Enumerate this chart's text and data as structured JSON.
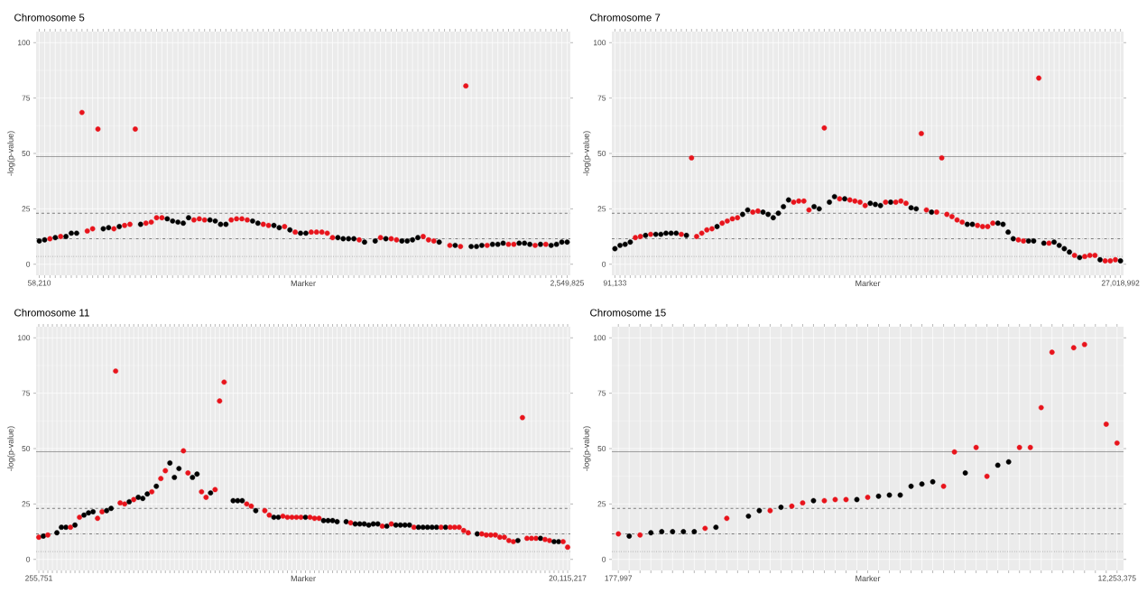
{
  "chart_data": [
    {
      "type": "scatter",
      "title": "Chromosome 5",
      "xlabel": "Marker",
      "ylabel": "-log(p-value)",
      "grid": true,
      "ylim": [
        -5,
        105
      ],
      "yticks": [
        0,
        25,
        50,
        75,
        100
      ],
      "ref_lines": [
        {
          "axis": "y",
          "value": 48.5,
          "line_style": "solid",
          "color": "#4d4d4d"
        },
        {
          "axis": "y",
          "value": 23,
          "line_style": "dashed",
          "color": "#333333"
        },
        {
          "axis": "y",
          "value": 11.5,
          "line_style": "dashdot",
          "color": "#333333"
        },
        {
          "axis": "y",
          "value": 3.5,
          "line_style": "dotted",
          "color": "#555555"
        }
      ],
      "categories": [
        "58,210",
        null,
        null,
        null,
        null,
        null,
        null,
        null,
        null,
        null,
        null,
        null,
        null,
        null,
        null,
        null,
        null,
        null,
        null,
        null,
        null,
        null,
        null,
        null,
        null,
        null,
        null,
        null,
        null,
        null,
        null,
        null,
        null,
        null,
        null,
        null,
        null,
        null,
        null,
        null,
        null,
        null,
        null,
        null,
        null,
        null,
        null,
        null,
        null,
        null,
        null,
        null,
        null,
        null,
        null,
        null,
        null,
        null,
        null,
        null,
        null,
        null,
        null,
        null,
        null,
        null,
        null,
        null,
        null,
        null,
        null,
        null,
        null,
        null,
        null,
        null,
        null,
        null,
        null,
        null,
        null,
        null,
        null,
        null,
        null,
        null,
        null,
        null,
        null,
        null,
        null,
        null,
        null,
        null,
        null,
        null,
        null,
        null,
        null,
        "2,549,825"
      ],
      "values": [
        10.5,
        11,
        11.5,
        12,
        12.5,
        12.5,
        14,
        14,
        68.5,
        15,
        16,
        61,
        16,
        16.5,
        16,
        17,
        17.5,
        18,
        61,
        18,
        18.5,
        19,
        21,
        21,
        20.5,
        19.5,
        19,
        18.5,
        21,
        20,
        20.5,
        20,
        20,
        19.5,
        18,
        18,
        20,
        20.5,
        20.5,
        20,
        19.5,
        18.5,
        18,
        17.5,
        17.5,
        16.5,
        17,
        15.5,
        14.5,
        14,
        14,
        14.5,
        14.5,
        14.5,
        14,
        12,
        12,
        11.5,
        11.5,
        11.5,
        11,
        10,
        null,
        10.5,
        12,
        11.5,
        11.5,
        11,
        10.5,
        10.5,
        11,
        12,
        12.5,
        11,
        10.5,
        10,
        null,
        8.5,
        8.5,
        8,
        80.5,
        8,
        8,
        8.5,
        8.5,
        9,
        9,
        9.5,
        9,
        9,
        9.5,
        9.5,
        9,
        8.5,
        9,
        9,
        8.5,
        9,
        10,
        10
      ],
      "colors": [
        "#000000",
        "#000000",
        "#e8141c",
        "#000000",
        "#e8141c",
        "#000000",
        "#000000",
        "#000000",
        "#e8141c",
        "#e8141c",
        "#e8141c",
        "#e8141c",
        "#000000",
        "#000000",
        "#e8141c",
        "#000000",
        "#e8141c",
        "#e8141c",
        "#e8141c",
        "#000000",
        "#e8141c",
        "#e8141c",
        "#e8141c",
        "#e8141c",
        "#000000",
        "#000000",
        "#000000",
        "#000000",
        "#000000",
        "#e8141c",
        "#e8141c",
        "#e8141c",
        "#000000",
        "#000000",
        "#000000",
        "#000000",
        "#e8141c",
        "#e8141c",
        "#e8141c",
        "#e8141c",
        "#000000",
        "#000000",
        "#e8141c",
        "#e8141c",
        "#000000",
        "#000000",
        "#e8141c",
        "#000000",
        "#e8141c",
        "#000000",
        "#000000",
        "#e8141c",
        "#e8141c",
        "#e8141c",
        "#e8141c",
        "#e8141c",
        "#000000",
        "#000000",
        "#000000",
        "#000000",
        "#e8141c",
        "#000000",
        null,
        "#000000",
        "#e8141c",
        "#000000",
        "#e8141c",
        "#e8141c",
        "#000000",
        "#000000",
        "#000000",
        "#000000",
        "#e8141c",
        "#e8141c",
        "#e8141c",
        "#000000",
        null,
        "#e8141c",
        "#000000",
        "#e8141c",
        "#e8141c",
        "#000000",
        "#000000",
        "#000000",
        "#e8141c",
        "#000000",
        "#000000",
        "#000000",
        "#e8141c",
        "#e8141c",
        "#000000",
        "#000000",
        "#000000",
        "#e8141c",
        "#000000",
        "#e8141c",
        "#000000",
        "#000000",
        "#000000",
        "#000000"
      ]
    },
    {
      "type": "scatter",
      "title": "Chromosome 7",
      "xlabel": "Marker",
      "ylabel": "-log(p-value)",
      "grid": true,
      "ylim": [
        -5,
        105
      ],
      "yticks": [
        0,
        25,
        50,
        75,
        100
      ],
      "ref_lines": [
        {
          "axis": "y",
          "value": 48.5,
          "line_style": "solid",
          "color": "#4d4d4d"
        },
        {
          "axis": "y",
          "value": 23,
          "line_style": "dashed",
          "color": "#333333"
        },
        {
          "axis": "y",
          "value": 11.5,
          "line_style": "dashdot",
          "color": "#333333"
        },
        {
          "axis": "y",
          "value": 3.5,
          "line_style": "dotted",
          "color": "#555555"
        }
      ],
      "categories": [
        "91,133",
        null,
        null,
        null,
        null,
        null,
        null,
        null,
        null,
        null,
        null,
        null,
        null,
        null,
        null,
        null,
        null,
        null,
        null,
        null,
        null,
        null,
        null,
        null,
        null,
        null,
        null,
        null,
        null,
        null,
        null,
        null,
        null,
        null,
        null,
        null,
        null,
        null,
        null,
        null,
        null,
        null,
        null,
        null,
        null,
        null,
        null,
        null,
        null,
        null,
        null,
        null,
        null,
        null,
        null,
        null,
        null,
        null,
        null,
        null,
        null,
        null,
        null,
        null,
        null,
        null,
        null,
        null,
        null,
        null,
        null,
        null,
        null,
        null,
        null,
        null,
        null,
        null,
        null,
        null,
        null,
        null,
        null,
        null,
        null,
        null,
        null,
        null,
        null,
        null,
        null,
        null,
        null,
        null,
        null,
        null,
        null,
        null,
        null,
        "27,018,992"
      ],
      "values": [
        7,
        8.5,
        9,
        10,
        12,
        12.5,
        13,
        13.5,
        13.5,
        13.5,
        14,
        14,
        14,
        13.5,
        13,
        48,
        12.5,
        14,
        15.5,
        16,
        17,
        18.5,
        19.5,
        20.5,
        21,
        22.5,
        24.5,
        23.5,
        24,
        23.5,
        22.5,
        21,
        23,
        26,
        29,
        28,
        28.5,
        28.5,
        24.5,
        26,
        25,
        61.5,
        28,
        30.5,
        29.5,
        29.5,
        29,
        28.5,
        28,
        26.5,
        27.5,
        27,
        26.5,
        28,
        28,
        28,
        28.5,
        27.5,
        25.5,
        25,
        59,
        24.5,
        23.5,
        23.5,
        48,
        22.5,
        21.5,
        20,
        19,
        18,
        18,
        17.5,
        17,
        17,
        18.5,
        18.5,
        18,
        14.5,
        11.5,
        11,
        10.5,
        10.5,
        10.5,
        84,
        9.5,
        9.5,
        10,
        8.5,
        7,
        5.5,
        4,
        3,
        3.5,
        4,
        4,
        2,
        1.5,
        1.5,
        2,
        1.5
      ],
      "colors": [
        "#000000",
        "#000000",
        "#000000",
        "#000000",
        "#e8141c",
        "#e8141c",
        "#000000",
        "#e8141c",
        "#000000",
        "#000000",
        "#000000",
        "#000000",
        "#000000",
        "#e8141c",
        "#000000",
        "#e8141c",
        "#e8141c",
        "#e8141c",
        "#e8141c",
        "#e8141c",
        "#000000",
        "#e8141c",
        "#e8141c",
        "#e8141c",
        "#e8141c",
        "#000000",
        "#000000",
        "#e8141c",
        "#e8141c",
        "#000000",
        "#000000",
        "#000000",
        "#000000",
        "#000000",
        "#000000",
        "#e8141c",
        "#e8141c",
        "#e8141c",
        "#e8141c",
        "#000000",
        "#000000",
        "#e8141c",
        "#000000",
        "#000000",
        "#e8141c",
        "#000000",
        "#e8141c",
        "#e8141c",
        "#e8141c",
        "#e8141c",
        "#000000",
        "#000000",
        "#000000",
        "#e8141c",
        "#000000",
        "#e8141c",
        "#e8141c",
        "#e8141c",
        "#000000",
        "#000000",
        "#e8141c",
        "#e8141c",
        "#000000",
        "#e8141c",
        "#e8141c",
        "#e8141c",
        "#e8141c",
        "#e8141c",
        "#e8141c",
        "#000000",
        "#000000",
        "#e8141c",
        "#e8141c",
        "#e8141c",
        "#e8141c",
        "#000000",
        "#000000",
        "#000000",
        "#000000",
        "#e8141c",
        "#e8141c",
        "#000000",
        "#000000",
        "#e8141c",
        "#000000",
        "#e8141c",
        "#000000",
        "#000000",
        "#000000",
        "#000000",
        "#e8141c",
        "#000000",
        "#e8141c",
        "#e8141c",
        "#e8141c",
        "#000000",
        "#e8141c",
        "#e8141c",
        "#e8141c",
        "#000000"
      ]
    },
    {
      "type": "scatter",
      "title": "Chromosome 11",
      "xlabel": "Marker",
      "ylabel": "-log(p-value)",
      "grid": true,
      "ylim": [
        -5,
        105
      ],
      "yticks": [
        0,
        25,
        50,
        75,
        100
      ],
      "ref_lines": [
        {
          "axis": "y",
          "value": 48.5,
          "line_style": "solid",
          "color": "#4d4d4d"
        },
        {
          "axis": "y",
          "value": 23,
          "line_style": "dashed",
          "color": "#333333"
        },
        {
          "axis": "y",
          "value": 11.5,
          "line_style": "dashdot",
          "color": "#333333"
        },
        {
          "axis": "y",
          "value": 3.5,
          "line_style": "dotted",
          "color": "#555555"
        }
      ],
      "categories": [
        "255,751",
        null,
        null,
        null,
        null,
        null,
        null,
        null,
        null,
        null,
        null,
        null,
        null,
        null,
        null,
        null,
        null,
        null,
        null,
        null,
        null,
        null,
        null,
        null,
        null,
        null,
        null,
        null,
        null,
        null,
        null,
        null,
        null,
        null,
        null,
        null,
        null,
        null,
        null,
        null,
        null,
        null,
        null,
        null,
        null,
        null,
        null,
        null,
        null,
        null,
        null,
        null,
        null,
        null,
        null,
        null,
        null,
        null,
        null,
        null,
        null,
        null,
        null,
        null,
        null,
        null,
        null,
        null,
        null,
        null,
        null,
        null,
        null,
        null,
        null,
        null,
        null,
        null,
        null,
        null,
        null,
        null,
        null,
        null,
        null,
        null,
        null,
        null,
        null,
        null,
        null,
        null,
        null,
        null,
        null,
        null,
        null,
        null,
        null,
        null,
        null,
        null,
        null,
        null,
        null,
        null,
        null,
        null,
        null,
        null,
        null,
        null,
        null,
        null,
        null,
        null,
        null,
        "20,115,217"
      ],
      "values": [
        10,
        10.5,
        11,
        null,
        12,
        14.5,
        14.5,
        14.5,
        15.5,
        19,
        20,
        21,
        21.5,
        18.5,
        21.5,
        22,
        23,
        85,
        25.5,
        25,
        26,
        27,
        28,
        27.5,
        29.5,
        30.5,
        33,
        36.5,
        40,
        43.5,
        37,
        41,
        49,
        39,
        37,
        38.5,
        30.5,
        28,
        30,
        31.5,
        71.5,
        80,
        null,
        26.5,
        26.5,
        26.5,
        25,
        24,
        22,
        null,
        22,
        20,
        19,
        19,
        19.5,
        19,
        19,
        19,
        19,
        19,
        19,
        18.5,
        18.5,
        17.5,
        17.5,
        17.5,
        17,
        null,
        17,
        16.5,
        16,
        16,
        16,
        15.5,
        16,
        16,
        15,
        15,
        16,
        15.5,
        15.5,
        15.5,
        15.5,
        14.5,
        14.5,
        14.5,
        14.5,
        14.5,
        14.5,
        14.5,
        14.5,
        14.5,
        14.5,
        14.5,
        13,
        12,
        null,
        11.5,
        11.5,
        11,
        11,
        11,
        10,
        10,
        8.5,
        8,
        8.5,
        64,
        9.5,
        9.5,
        9.5,
        9.5,
        9,
        8.5,
        8,
        8,
        8,
        5.5
      ],
      "colors": [
        "#e8141c",
        "#000000",
        "#e8141c",
        null,
        "#000000",
        "#000000",
        "#000000",
        "#e8141c",
        "#000000",
        "#e8141c",
        "#000000",
        "#000000",
        "#000000",
        "#e8141c",
        "#e8141c",
        "#000000",
        "#000000",
        "#e8141c",
        "#e8141c",
        "#e8141c",
        "#000000",
        "#e8141c",
        "#000000",
        "#000000",
        "#000000",
        "#e8141c",
        "#000000",
        "#e8141c",
        "#e8141c",
        "#000000",
        "#000000",
        "#000000",
        "#e8141c",
        "#e8141c",
        "#000000",
        "#000000",
        "#e8141c",
        "#e8141c",
        "#000000",
        "#e8141c",
        "#e8141c",
        "#e8141c",
        null,
        "#000000",
        "#000000",
        "#000000",
        "#e8141c",
        "#e8141c",
        "#000000",
        null,
        "#e8141c",
        "#e8141c",
        "#000000",
        "#000000",
        "#e8141c",
        "#e8141c",
        "#e8141c",
        "#e8141c",
        "#e8141c",
        "#000000",
        "#e8141c",
        "#e8141c",
        "#e8141c",
        "#000000",
        "#000000",
        "#000000",
        "#000000",
        null,
        "#000000",
        "#e8141c",
        "#000000",
        "#000000",
        "#000000",
        "#000000",
        "#000000",
        "#000000",
        "#e8141c",
        "#000000",
        "#e8141c",
        "#000000",
        "#000000",
        "#000000",
        "#000000",
        "#e8141c",
        "#000000",
        "#000000",
        "#000000",
        "#000000",
        "#000000",
        "#e8141c",
        "#000000",
        "#e8141c",
        "#e8141c",
        "#e8141c",
        "#e8141c",
        "#e8141c",
        null,
        "#000000",
        "#e8141c",
        "#e8141c",
        "#e8141c",
        "#e8141c",
        "#e8141c",
        "#e8141c",
        "#e8141c",
        "#e8141c",
        "#000000",
        "#e8141c",
        "#e8141c",
        "#e8141c",
        "#e8141c",
        "#000000",
        "#e8141c",
        "#e8141c",
        "#000000",
        "#000000",
        "#e8141c",
        "#e8141c"
      ]
    },
    {
      "type": "scatter",
      "title": "Chromosome 15",
      "xlabel": "Marker",
      "ylabel": "-log(p-value)",
      "grid": true,
      "ylim": [
        -5,
        105
      ],
      "yticks": [
        0,
        25,
        50,
        75,
        100
      ],
      "ref_lines": [
        {
          "axis": "y",
          "value": 48.5,
          "line_style": "solid",
          "color": "#4d4d4d"
        },
        {
          "axis": "y",
          "value": 23,
          "line_style": "dashed",
          "color": "#333333"
        },
        {
          "axis": "y",
          "value": 11.5,
          "line_style": "dashdot",
          "color": "#333333"
        },
        {
          "axis": "y",
          "value": 3.5,
          "line_style": "dotted",
          "color": "#555555"
        }
      ],
      "categories": [
        "177,997",
        null,
        null,
        null,
        null,
        null,
        null,
        null,
        null,
        null,
        null,
        null,
        null,
        null,
        null,
        null,
        null,
        null,
        null,
        null,
        null,
        null,
        null,
        null,
        null,
        null,
        null,
        null,
        null,
        null,
        null,
        null,
        null,
        null,
        null,
        null,
        null,
        null,
        null,
        null,
        null,
        null,
        null,
        null,
        null,
        null,
        "12,253,375"
      ],
      "values": [
        11.5,
        10.5,
        11,
        12,
        12.5,
        12.5,
        12.5,
        12.5,
        14,
        14.5,
        18.5,
        null,
        19.5,
        22,
        22,
        23.5,
        24,
        25.5,
        26.5,
        26.5,
        27,
        27,
        27,
        28,
        28.5,
        29,
        29,
        33,
        34,
        35,
        33,
        48.5,
        39,
        50.5,
        37.5,
        42.5,
        44,
        50.5,
        50.5,
        68.5,
        93.5,
        null,
        95.5,
        97,
        null,
        61,
        52.5
      ],
      "colors": [
        "#e8141c",
        "#000000",
        "#e8141c",
        "#000000",
        "#000000",
        "#000000",
        "#000000",
        "#000000",
        "#e8141c",
        "#000000",
        "#e8141c",
        null,
        "#000000",
        "#000000",
        "#e8141c",
        "#000000",
        "#e8141c",
        "#e8141c",
        "#000000",
        "#e8141c",
        "#e8141c",
        "#e8141c",
        "#000000",
        "#e8141c",
        "#000000",
        "#000000",
        "#000000",
        "#000000",
        "#000000",
        "#000000",
        "#e8141c",
        "#e8141c",
        "#000000",
        "#e8141c",
        "#e8141c",
        "#000000",
        "#000000",
        "#e8141c",
        "#e8141c",
        "#e8141c",
        "#e8141c",
        null,
        "#e8141c",
        "#e8141c",
        null,
        "#e8141c",
        "#e8141c"
      ]
    }
  ]
}
